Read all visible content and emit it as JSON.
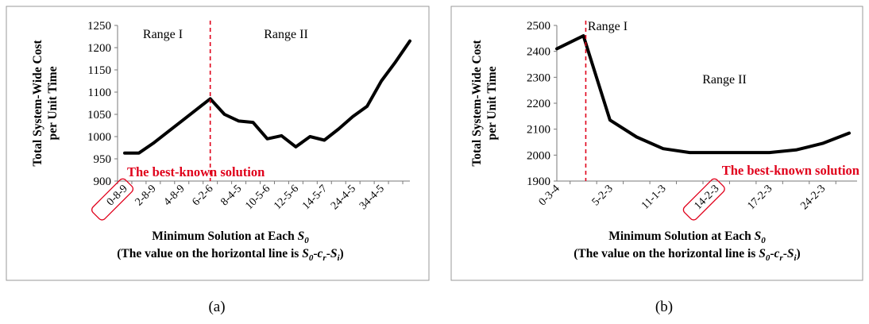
{
  "chart_data": [
    {
      "type": "line",
      "caption": "(a)",
      "xlabel": "Minimum Solution at Each S0",
      "xlabel_sub": "(The value on the horizontal line is S0-cr-Si)",
      "ylabel_line1": "Total System-Wide Cost",
      "ylabel_line2": "per Unit Time",
      "ylim": [
        900,
        1250
      ],
      "yticks": [
        900,
        950,
        1000,
        1050,
        1100,
        1150,
        1200,
        1250
      ],
      "x_tick_labels": [
        "0-8-9",
        "2-8-9",
        "4-8-9",
        "6-2-6",
        "8-4-5",
        "10-5-6",
        "12-5-6",
        "14-5-7",
        "24-4-5",
        "34-4-5"
      ],
      "values": [
        963,
        963,
        985,
        1010,
        1035,
        1060,
        1085,
        1050,
        1035,
        1032,
        995,
        1002,
        977,
        1000,
        992,
        1017,
        1045,
        1068,
        1125,
        1168,
        1215
      ],
      "range_labels": [
        "Range I",
        "Range II"
      ],
      "split_after_index": 6,
      "annotation": "The best-known solution",
      "highlighted_tick": "0-8-9",
      "grid": false
    },
    {
      "type": "line",
      "caption": "(b)",
      "xlabel": "Minimum Solution at Each S0",
      "xlabel_sub": "(The value on the horizontal line is S0-cr-Si)",
      "ylabel_line1": "Total System-Wide Cost",
      "ylabel_line2": "per Unit Time",
      "ylim": [
        1900,
        2500
      ],
      "yticks": [
        1900,
        2000,
        2100,
        2200,
        2300,
        2400,
        2500
      ],
      "x_tick_labels": [
        "0-3-4",
        "5-2-3",
        "11-1-3",
        "14-2-3",
        "17-2-3",
        "24-2-3"
      ],
      "values": [
        2410,
        2460,
        2135,
        2070,
        2025,
        2010,
        2010,
        2010,
        2010,
        2020,
        2045,
        2085
      ],
      "range_labels": [
        "Range I",
        "Range II"
      ],
      "split_after_index": 1,
      "annotation": "The best-known solution",
      "highlighted_tick": "14-2-3",
      "grid": false
    }
  ]
}
